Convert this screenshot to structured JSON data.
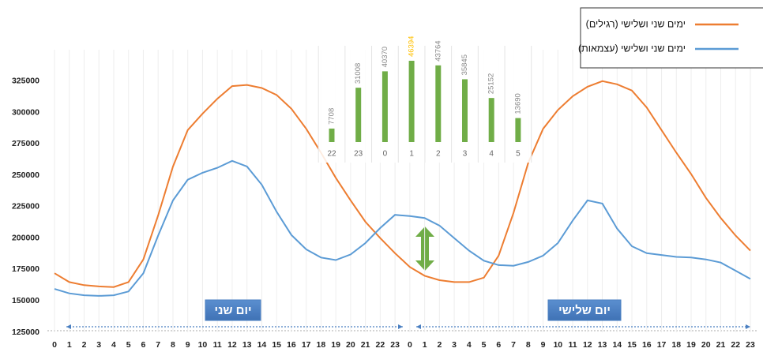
{
  "chart_data": [
    {
      "type": "line",
      "categories": [
        0,
        1,
        2,
        3,
        4,
        5,
        6,
        7,
        8,
        9,
        10,
        11,
        12,
        13,
        14,
        15,
        16,
        17,
        18,
        19,
        20,
        21,
        22,
        23,
        0,
        1,
        2,
        3,
        4,
        5,
        6,
        7,
        8,
        9,
        10,
        11,
        12,
        13,
        14,
        15,
        16,
        17,
        18,
        19,
        20,
        21,
        22,
        23
      ],
      "series": [
        {
          "name": "ימים שני ושלישי (רגילים)",
          "color": "#ed7d31",
          "values": [
            172000,
            165000,
            162500,
            161500,
            161000,
            165000,
            183000,
            218000,
            257000,
            286000,
            299000,
            311000,
            321000,
            322000,
            319500,
            314000,
            303000,
            287000,
            268000,
            248000,
            230000,
            213000,
            200000,
            188000,
            177000,
            170000,
            166500,
            165000,
            165000,
            168500,
            186000,
            220000,
            260000,
            287000,
            302000,
            313000,
            320500,
            325000,
            322500,
            317500,
            304000,
            286000,
            268000,
            251000,
            232000,
            216000,
            202000,
            190000
          ]
        },
        {
          "name": "ימים שני ושלישי (עצמאות)",
          "color": "#5b9bd5",
          "values": [
            159500,
            156000,
            154500,
            154000,
            154500,
            157500,
            172000,
            202000,
            230000,
            246500,
            252000,
            256000,
            261500,
            257000,
            242500,
            221000,
            202500,
            191000,
            184500,
            182500,
            187000,
            196000,
            208000,
            218500,
            217500,
            216000,
            210000,
            200000,
            190000,
            182000,
            178500,
            178000,
            181000,
            186000,
            196000,
            214000,
            230000,
            227500,
            207500,
            193500,
            188000,
            186500,
            185000,
            184500,
            183000,
            180500,
            174000,
            167500
          ]
        }
      ],
      "ylim": [
        125000,
        350000
      ],
      "yticks": [
        125000,
        150000,
        175000,
        200000,
        225000,
        250000,
        275000,
        300000,
        325000
      ],
      "xgrid": true,
      "legend": "top-right",
      "annotations": [
        "יום שני",
        "יום שלישי"
      ],
      "annotation_color": "#4a7fc1"
    },
    {
      "type": "bar",
      "categories": [
        22,
        23,
        0,
        1,
        2,
        3,
        4,
        5
      ],
      "values": [
        7708,
        31008,
        40370,
        46394,
        43764,
        35845,
        25152,
        13690
      ],
      "color": "#70ad47",
      "value_label_colors": [
        "#888",
        "#888",
        "#888",
        "#ffc000",
        "#888",
        "#888",
        "#888",
        "#888"
      ],
      "ylim": [
        0,
        50000
      ],
      "xgrid": true
    }
  ]
}
